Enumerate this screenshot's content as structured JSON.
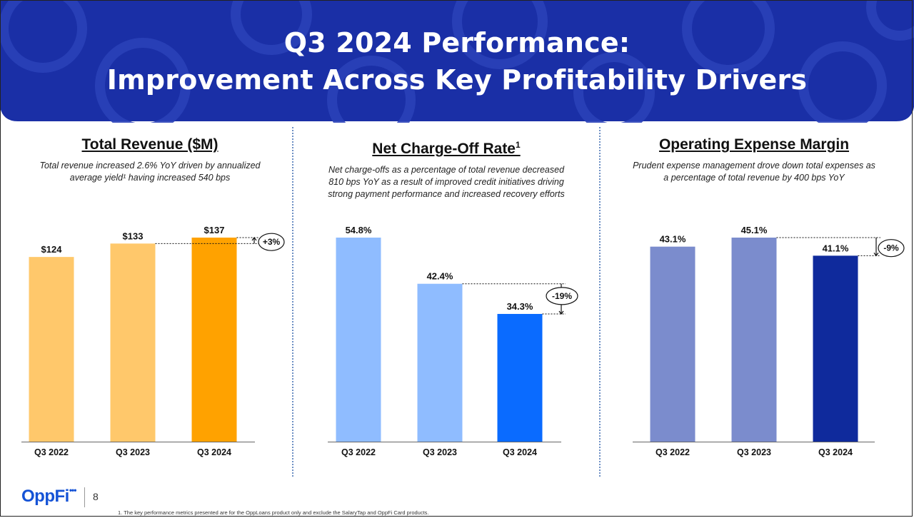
{
  "header": {
    "title_line1": "Q3 2024 Performance:",
    "title_line2": "Improvement Across Key Profitability Drivers"
  },
  "colors": {
    "header_bg": "#1a2fa6",
    "revenue_light": "#ffc86b",
    "revenue_dark": "#ffa200",
    "nco_light": "#8fbcff",
    "nco_dark": "#0a6bff",
    "opex_light": "#7b8ccd",
    "opex_dark": "#0f2a9c"
  },
  "panels": [
    {
      "title": "Total Revenue ($M)",
      "superscript": "",
      "description": "Total revenue increased 2.6% YoY driven by annualized average yield¹ having increased 540 bps"
    },
    {
      "title": "Net Charge-Off Rate",
      "superscript": "1",
      "description": "Net charge-offs as a percentage of total revenue decreased 810 bps YoY as a result of improved credit initiatives driving strong payment performance and increased recovery efforts"
    },
    {
      "title": "Operating Expense Margin",
      "superscript": "",
      "description": "Prudent expense management drove down total expenses as a percentage of total revenue by 400 bps YoY"
    }
  ],
  "chart_data": [
    {
      "type": "bar",
      "title": "Total Revenue ($M)",
      "categories": [
        "Q3 2022",
        "Q3 2023",
        "Q3 2024"
      ],
      "values": [
        124,
        133,
        137
      ],
      "labels": [
        "$124",
        "$133",
        "$137"
      ],
      "ylim": [
        0,
        137
      ],
      "change_label": "+3%",
      "colors": [
        "#ffc86b",
        "#ffc86b",
        "#ffa200"
      ]
    },
    {
      "type": "bar",
      "title": "Net Charge-Off Rate",
      "categories": [
        "Q3 2022",
        "Q3 2023",
        "Q3 2024"
      ],
      "values": [
        54.8,
        42.4,
        34.3
      ],
      "labels": [
        "54.8%",
        "42.4%",
        "34.3%"
      ],
      "ylim": [
        0,
        54.8
      ],
      "change_label": "-19%",
      "colors": [
        "#8fbcff",
        "#8fbcff",
        "#0a6bff"
      ]
    },
    {
      "type": "bar",
      "title": "Operating Expense Margin",
      "categories": [
        "Q3 2022",
        "Q3 2023",
        "Q3 2024"
      ],
      "values": [
        43.1,
        45.1,
        41.1
      ],
      "labels": [
        "43.1%",
        "45.1%",
        "41.1%"
      ],
      "ylim": [
        0,
        45.1
      ],
      "change_label": "-9%",
      "colors": [
        "#7b8ccd",
        "#7b8ccd",
        "#0f2a9c"
      ]
    }
  ],
  "footer": {
    "logo_text": "OppFi",
    "logo_dots": "•••",
    "page_number": "8",
    "footnote": "1.     The key performance metrics presented are for the OppLoans product only and exclude the SalaryTap and OppFi Card products."
  }
}
